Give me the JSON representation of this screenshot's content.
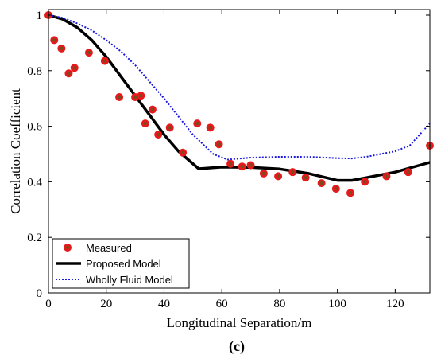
{
  "chart_data": {
    "type": "line",
    "xlabel": "Longitudinal Separation/m",
    "ylabel": "Correlation Coefficient",
    "xlim": [
      0,
      132
    ],
    "ylim": [
      0,
      1.02
    ],
    "xticks": [
      0,
      20,
      40,
      60,
      80,
      100,
      120
    ],
    "yticks": [
      0,
      0.2,
      0.4,
      0.6,
      0.8,
      1
    ],
    "ytick_labels": [
      "0",
      "0.2",
      "0.4",
      "0.6",
      "0.8",
      "1"
    ],
    "grid": false,
    "legend_position": "bottom-left",
    "panel_label": "(c)",
    "series": [
      {
        "name": "Measured",
        "kind": "scatter",
        "color": "#e8191d",
        "x": [
          0,
          2,
          4.5,
          7,
          9,
          14,
          19.5,
          24.5,
          30,
          32,
          33.5,
          36,
          38,
          42,
          46.5,
          51.5,
          56,
          59,
          63,
          67,
          70,
          74.5,
          79.5,
          84.5,
          89,
          94.5,
          99.5,
          104.5,
          109.5,
          117,
          124.5,
          132
        ],
        "y": [
          1.0,
          0.91,
          0.88,
          0.79,
          0.81,
          0.865,
          0.835,
          0.705,
          0.705,
          0.71,
          0.61,
          0.66,
          0.57,
          0.595,
          0.505,
          0.61,
          0.595,
          0.535,
          0.465,
          0.455,
          0.46,
          0.43,
          0.42,
          0.435,
          0.415,
          0.395,
          0.375,
          0.36,
          0.4,
          0.42,
          0.435,
          0.53
        ]
      },
      {
        "name": "Proposed Model",
        "kind": "line",
        "color": "#000000",
        "x": [
          0,
          5,
          10,
          15,
          20,
          25,
          30,
          35,
          40,
          45,
          52,
          60,
          70,
          80,
          90,
          100,
          105,
          110,
          120,
          132
        ],
        "y": [
          1.0,
          0.985,
          0.955,
          0.91,
          0.85,
          0.78,
          0.71,
          0.64,
          0.57,
          0.51,
          0.447,
          0.453,
          0.452,
          0.446,
          0.43,
          0.405,
          0.405,
          0.415,
          0.435,
          0.47
        ]
      },
      {
        "name": "Wholly Fluid Model",
        "kind": "dotted-line",
        "color": "#1a1adc",
        "x": [
          0,
          5,
          10,
          15,
          20,
          25,
          30,
          35,
          40,
          45,
          50,
          57,
          62,
          70,
          80,
          90,
          100,
          105,
          110,
          120,
          125,
          132
        ],
        "y": [
          1.0,
          0.99,
          0.97,
          0.945,
          0.91,
          0.87,
          0.82,
          0.76,
          0.7,
          0.635,
          0.57,
          0.5,
          0.48,
          0.487,
          0.49,
          0.49,
          0.485,
          0.484,
          0.49,
          0.51,
          0.53,
          0.61
        ]
      }
    ]
  }
}
